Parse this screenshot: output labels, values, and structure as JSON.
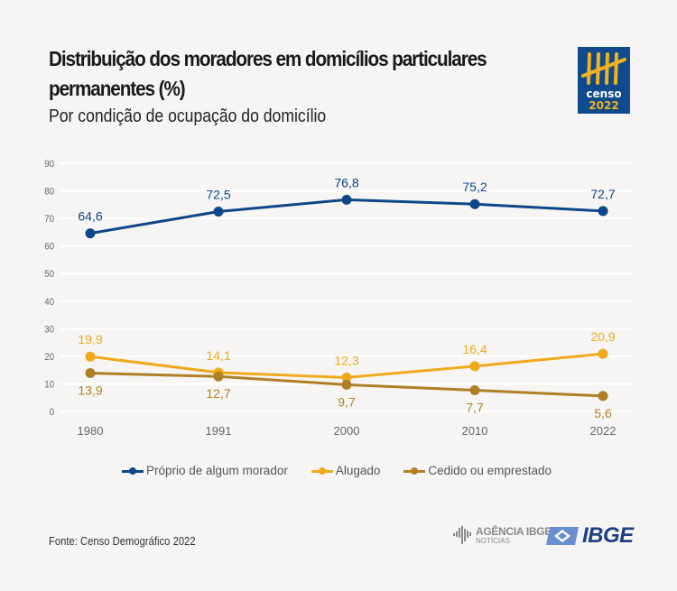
{
  "header": {
    "title": "Distribuição dos moradores em domicílios particulares permanentes (%)",
    "subtitle": "Por condição de ocupação do domicílio"
  },
  "logos": {
    "censo_word": "censo",
    "censo_year": "2022",
    "agencia_title": "AGÊNCIA IBGE",
    "agencia_sub": "NOTÍCIAS",
    "ibge": "IBGE"
  },
  "footer": {
    "source": "Fonte: Censo Demográfico 2022"
  },
  "colors": {
    "proprio": "#0d4689",
    "alugado": "#eeaa1b",
    "cedido": "#b07f25",
    "grid": "#ffffff",
    "tick": "#666666"
  },
  "chart_data": {
    "type": "line",
    "title": "Distribuição dos moradores em domicílios particulares permanentes (%)",
    "subtitle": "Por condição de ocupação do domicílio",
    "xlabel": "",
    "ylabel": "",
    "x": [
      "1980",
      "1991",
      "2000",
      "2010",
      "2022"
    ],
    "ylim": [
      0,
      90
    ],
    "yticks": [
      0,
      10,
      20,
      30,
      40,
      50,
      60,
      70,
      80,
      90
    ],
    "grid": true,
    "legend_position": "bottom",
    "series": [
      {
        "key": "proprio",
        "name": "Próprio de algum morador",
        "values": [
          64.6,
          72.5,
          76.8,
          75.2,
          72.7
        ],
        "labels": [
          "64,6",
          "72,5",
          "76,8",
          "75,2",
          "72,7"
        ],
        "label_position": "above"
      },
      {
        "key": "alugado",
        "name": "Alugado",
        "values": [
          19.9,
          14.1,
          12.3,
          16.4,
          20.9
        ],
        "labels": [
          "19,9",
          "14,1",
          "12,3",
          "16,4",
          "20,9"
        ],
        "label_position": "above"
      },
      {
        "key": "cedido",
        "name": "Cedido ou emprestado",
        "values": [
          13.9,
          12.7,
          9.7,
          7.7,
          5.6
        ],
        "labels": [
          "13,9",
          "12,7",
          "9,7",
          "7,7",
          "5,6"
        ],
        "label_position": "below"
      }
    ]
  }
}
